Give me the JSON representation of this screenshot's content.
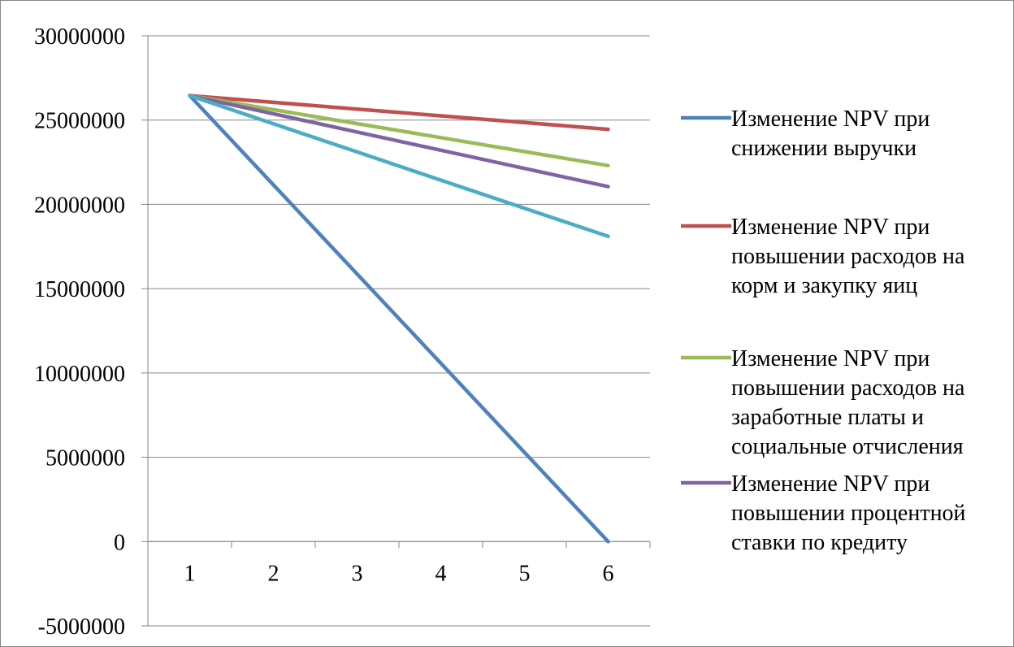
{
  "chart_data": {
    "type": "line",
    "title": "",
    "xlabel": "",
    "ylabel": "",
    "categories": [
      "1",
      "2",
      "3",
      "4",
      "5",
      "6"
    ],
    "ylim": [
      -5000000,
      30000000
    ],
    "y_ticks": [
      -5000000,
      0,
      5000000,
      10000000,
      15000000,
      20000000,
      25000000,
      30000000
    ],
    "y_tick_labels": [
      "-5000000",
      "0",
      "5000000",
      "10000000",
      "15000000",
      "20000000",
      "25000000",
      "30000000"
    ],
    "grid": "horizontal",
    "legend_position": "right",
    "series": [
      {
        "name": "Изменение NPV при снижении выручки",
        "legend_lines": [
          "Изменение NPV при",
          "снижении выручки"
        ],
        "color": "#4F81BD",
        "values": [
          26450000,
          21160000,
          15870000,
          10580000,
          5290000,
          0
        ]
      },
      {
        "name": "Изменение NPV при повышении расходов на корм и закупку яиц",
        "legend_lines": [
          "Изменение NPV при",
          "повышении расходов на",
          "корм и закупку яиц"
        ],
        "color": "#C0504D",
        "values": [
          26450000,
          26050000,
          25650000,
          25250000,
          24850000,
          24450000
        ]
      },
      {
        "name": "Изменение NPV при повышении расходов на заработные платы и социальные отчисления",
        "legend_lines": [
          "Изменение NPV при",
          "повышении расходов на",
          "заработные платы и",
          "социальные отчисления"
        ],
        "color": "#9BBB59",
        "values": [
          26450000,
          25620000,
          24790000,
          23960000,
          23130000,
          22300000
        ]
      },
      {
        "name": "Изменение NPV при повышении процентной ставки по кредиту",
        "legend_lines": [
          "Изменение NPV при",
          "повышении процентной",
          "ставки по кредиту"
        ],
        "color": "#8064A2",
        "values": [
          26450000,
          25370000,
          24290000,
          23210000,
          22130000,
          21050000
        ]
      },
      {
        "name": "",
        "legend_lines": [],
        "color": "#4BACC6",
        "values": [
          26450000,
          24780000,
          23110000,
          21440000,
          19770000,
          18100000
        ]
      }
    ]
  }
}
